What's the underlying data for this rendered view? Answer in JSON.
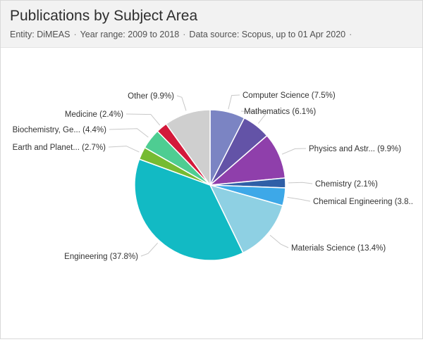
{
  "header": {
    "title": "Publications by Subject Area",
    "entity": "Entity: DiMEAS",
    "year_range": "Year range: 2009 to 2018",
    "data_source": "Data source: Scopus, up to 01 Apr 2020",
    "separator": "·"
  },
  "chart_data": {
    "type": "pie",
    "title": "Publications by Subject Area",
    "slices": [
      {
        "label": "Computer Science (7.5%)",
        "value": 7.5,
        "color": "#7b84c3",
        "side": "right"
      },
      {
        "label": "Mathematics (6.1%)",
        "value": 6.1,
        "color": "#6353a7",
        "side": "right"
      },
      {
        "label": "Physics and Astr... (9.9%)",
        "value": 9.9,
        "color": "#8f3fab",
        "side": "right"
      },
      {
        "label": "Chemistry (2.1%)",
        "value": 2.1,
        "color": "#2f5fa7",
        "side": "right"
      },
      {
        "label": "Chemical Engineering (3.8..",
        "value": 3.8,
        "color": "#3da8e8",
        "side": "right"
      },
      {
        "label": "Materials Science (13.4%)",
        "value": 13.4,
        "color": "#8ed0e3",
        "side": "right"
      },
      {
        "label": "Engineering (37.8%)",
        "value": 37.8,
        "color": "#12bac4",
        "side": "left"
      },
      {
        "label": "Earth and Planet... (2.7%)",
        "value": 2.7,
        "color": "#76bb32",
        "side": "left"
      },
      {
        "label": "Biochemistry, Ge... (4.4%)",
        "value": 4.4,
        "color": "#4ecd92",
        "side": "left"
      },
      {
        "label": "Medicine (2.4%)",
        "value": 2.4,
        "color": "#d3193a",
        "side": "left"
      },
      {
        "label": "Other (9.9%)",
        "value": 9.9,
        "color": "#cfcfcf",
        "side": "left"
      }
    ],
    "start": "12 o'clock",
    "direction": "clockwise",
    "legend": "none"
  }
}
